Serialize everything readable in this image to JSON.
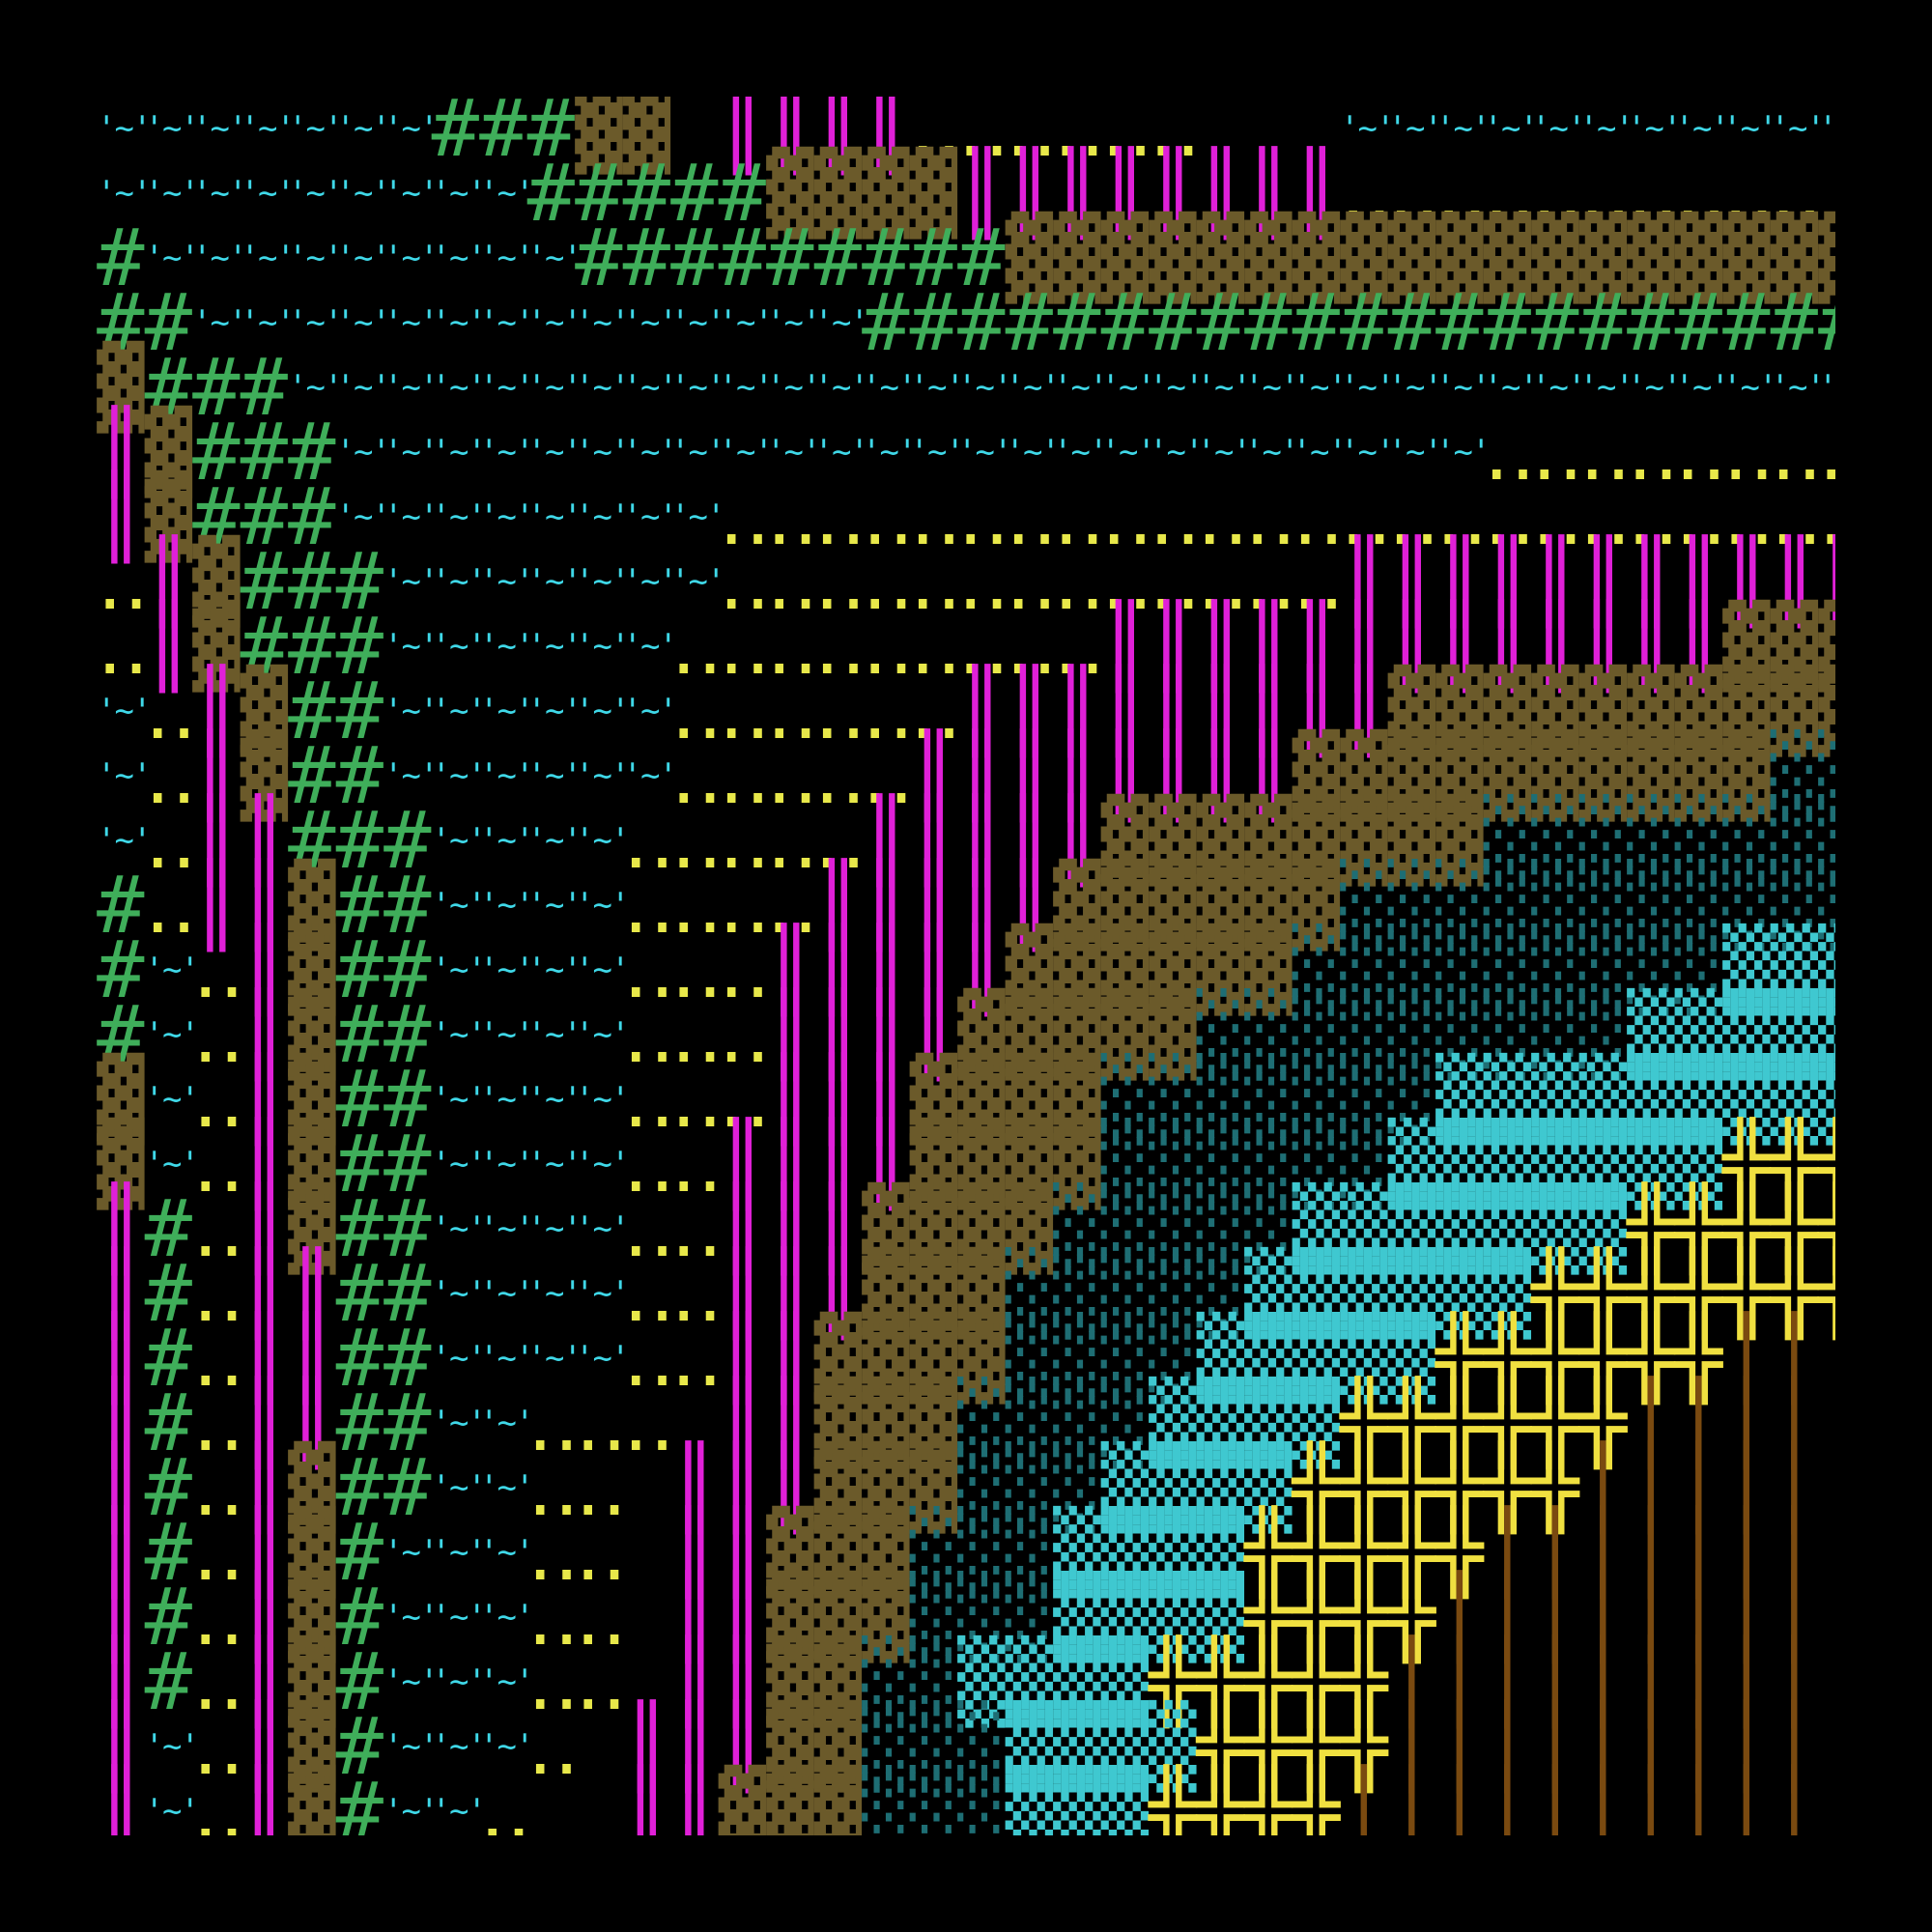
{
  "title": "",
  "palette": {
    ".": "#000000",
    "~": "#3fd8e8",
    "#": "#3fae5a",
    "B": "#6b5a2a",
    "M": "#e020d8",
    "o": "#e8e84a",
    "c": "#1e6e74",
    "C": "#3fc8d0",
    "Y": "#f0e040",
    "L": "#7a4a10"
  },
  "glyphs": {
    ".": " ",
    "~": "'~'",
    "#": "#",
    "B": "▓",
    "M": "║",
    "o": "‥",
    "c": "░",
    "C": "▒",
    "Y": "╬",
    "L": "│"
  },
  "icons": {
    "water": "wave-tile-icon",
    "grass": "hash-tile-icon",
    "rock": "block-tile-icon",
    "wall": "double-bar-tile-icon",
    "sand": "dot-pair-tile-icon",
    "shallow": "dither-tile-icon",
    "marsh": "dense-dither-tile-icon",
    "fence": "cross-tile-icon",
    "wood": "plank-tile-icon"
  },
  "map_rows": [
    "~~~~~~~###BB MMMMoooooo...~~~~~~~~~~~~~~~~~~~~",
    "~~~~~~~~~#####BBBBMMMMMMMMoooooooooo........MM",
    "#~~~~~~~~~#########BBBBBBBBBBBBBBBBBBBBBBBBBBB",
    "##~~~~~~~~~~~~~~#######################~~~~~~~",
    "B###~~~~~~~~~~~~~~~~~~~~~~~~~~~~~~~~~~~~~~~~~~",
    "MB###~~~~~~~~~~~~~~~~~~~~~~~~oooooooooooooooooo",
    "MB###~~~~~~~~oooooooooooooooooooooooooooMMMMMMM",
    "oMB###~~~~~~~oooooooooooooMMMMMMMMMMMMMMMMMMMMM",
    "oMB###~~~~~~oooooooooMMMMMMMMMMMMMBBBBBBBBBBBBB",
    "~oMB##~~~~~~ooooooMMMMMMMMMBBBBBBBBBBBBBBBBBBBc",
    "~oMB##~~~~~~oooooMMMMMMMMBBBBBBBBBBcccccccccccc",
    "~oMM###~~~~oooooMMMMMBBBBBBBBccccccccccccccccc",
    "#oMMB##~~~~ooooMMMMMBBBBBBccccccccccccCCCCCCCCC",
    "#~oMB##~~~~oooMMMMMBBBBBBcccccccccCCCCCCCCCCCCC",
    "#~oMB##~~~~oooMMMMBBBBBcccccccccCCCCCCCCCYYYYYY",
    "B~oMB##~~~~oooMMMBBBBcccccccCCCCCCCCCYYYYYYYYYY",
    "B~oMB##~~~~ooMMMMBBBBccccccCCCCCCCYYYYYYYYYYYYY",
    "M#oMB##~~~~ooMMMBBBBcccccCCCCCCCYYYYYYYYYYYYYYL",
    "M#oMM##~~~~ooMMMBBBcccccCCCCCCYYYYYYYYLLLLLLLLL",
    "M#oMM##~~~~ooMMBBBBccccCCCCCYYYYYYLLLLLLLLLLLLL",
    "M#oMM##~~ooo.MMBBBccccCCCCYYYYYYLLLLLLLLLLLLLLL",
    "M#oMB##~~oo.MMMBBBcccCCCCYYYYYYLLLLLLLLLLLLLLLB",
    "M#oMB#~~~oo.MMBBBcccCCCCYYYYYLLLLLLLLLLLLLLLLBB",
    "M#oMB#~~~oo.MMBBBcccCCCCYYYYLLLLLLLLLLLLLLLBBBB",
    "M#oMB#~~~oo.MMBBccCCCCYYYYYLLLLLLLLLLLLLLBBBBBc",
    "M~oMB#~~~o.MMMBBcccCCCCYYYYLLLLLLLLLLLLLBBBBccc",
    "M~oMB#~~o..MMBBBcccCCCYYYYLLLLLLLLLLLLBBBBBBccc"
  ]
}
